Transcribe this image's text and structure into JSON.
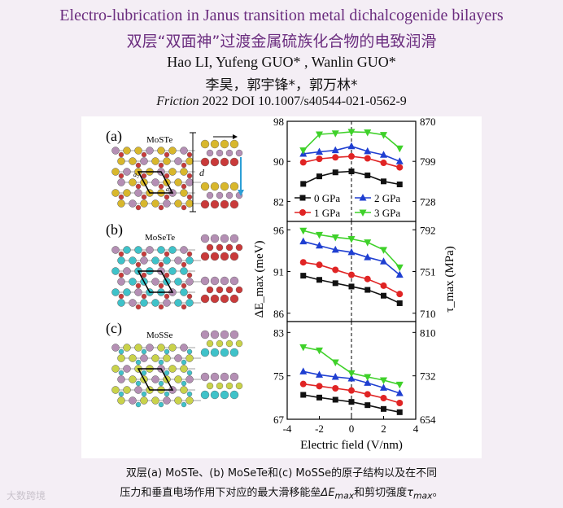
{
  "header": {
    "title_en": "Electro-lubrication in Janus transition metal dichalcogenide bilayers",
    "title_cn": "双层“双面神”过渡金属硫族化合物的电致润滑",
    "authors_en": "Hao LI, Yufeng GUO* , Wanlin GUO*",
    "authors_cn": "李昊，郭宇锋*，郭万林*",
    "journal": "Friction",
    "citation_rest": " 2022 DOI 10.1007/s40544-021-0562-9"
  },
  "figure": {
    "panel_a": {
      "tag": "(a)",
      "name": "MoSTe",
      "lattice_a1": "a₁",
      "lattice_a2": "a₂",
      "d_label": "d"
    },
    "panel_b": {
      "tag": "(b)",
      "name": "MoSeTe"
    },
    "panel_c": {
      "tag": "(c)",
      "name": "MoSSe"
    },
    "colors": {
      "mo": "#b48fb4",
      "s": "#d8b72c",
      "te": "#c93a3a",
      "se": "#3fc2c9",
      "s_light": "#c9d24a"
    }
  },
  "chart_data": {
    "type": "line",
    "xlabel": "Electric field (V/nm)",
    "ylabel_left": "ΔE_max (meV)",
    "ylabel_right": "τ_max (MPa)",
    "x_ticks": [
      "-4",
      "-2",
      "0",
      "2",
      "4"
    ],
    "xlim": [
      -4,
      4
    ],
    "legend": [
      "0 GPa",
      "1 GPa",
      "2 GPa",
      "3 GPa"
    ],
    "series_colors": [
      "#111111",
      "#e02424",
      "#1f3fd1",
      "#3fd12a"
    ],
    "x": [
      -3,
      -2,
      -1,
      0,
      1,
      2,
      3
    ],
    "subplots": [
      {
        "name": "MoSTe",
        "ylim": [
          78,
          98
        ],
        "left_ticks": [
          "98",
          "90",
          "82"
        ],
        "right_ticks": [
          "870",
          "799",
          "728"
        ],
        "series": [
          {
            "name": "0 GPa",
            "values": [
              85.5,
              87.0,
              87.8,
              88.0,
              87.2,
              86.0,
              85.4
            ]
          },
          {
            "name": "1 GPa",
            "values": [
              89.8,
              90.5,
              90.8,
              91.0,
              90.6,
              89.7,
              88.8
            ]
          },
          {
            "name": "2 GPa",
            "values": [
              91.5,
              91.9,
              92.2,
              93.0,
              92.0,
              91.3,
              90.0
            ]
          },
          {
            "name": "3 GPa",
            "values": [
              92.2,
              95.4,
              95.6,
              95.9,
              95.8,
              95.3,
              92.6
            ]
          }
        ]
      },
      {
        "name": "MoSeTe",
        "ylim": [
          85,
          97
        ],
        "left_ticks": [
          "96",
          "91",
          "86"
        ],
        "right_ticks": [
          "792",
          "751",
          "710"
        ],
        "series": [
          {
            "name": "0 GPa",
            "values": [
              90.5,
              90.0,
              89.6,
              89.2,
              88.8,
              88.1,
              87.2
            ]
          },
          {
            "name": "1 GPa",
            "values": [
              92.1,
              91.8,
              91.2,
              90.6,
              90.1,
              89.3,
              88.3
            ]
          },
          {
            "name": "2 GPa",
            "values": [
              94.6,
              94.1,
              93.6,
              93.3,
              92.7,
              92.2,
              90.6
            ]
          },
          {
            "name": "3 GPa",
            "values": [
              95.9,
              95.4,
              95.1,
              94.9,
              94.5,
              93.6,
              91.5
            ]
          }
        ]
      },
      {
        "name": "MoSSe",
        "ylim": [
          67,
          85
        ],
        "left_ticks": [
          "83",
          "75",
          "67"
        ],
        "right_ticks": [
          "810",
          "732",
          "654"
        ],
        "series": [
          {
            "name": "0 GPa",
            "values": [
              71.5,
              71.0,
              70.6,
              70.2,
              69.6,
              68.9,
              68.3
            ]
          },
          {
            "name": "1 GPa",
            "values": [
              73.5,
              73.1,
              72.7,
              72.3,
              71.6,
              70.9,
              70.0
            ]
          },
          {
            "name": "2 GPa",
            "values": [
              75.8,
              75.2,
              74.8,
              74.5,
              73.7,
              72.8,
              71.8
            ]
          },
          {
            "name": "3 GPa",
            "values": [
              80.3,
              79.7,
              77.5,
              75.5,
              74.8,
              74.2,
              73.4
            ]
          }
        ]
      }
    ]
  },
  "caption": {
    "line1": "双层(a) MoSTe、(b) MoSeTe和(c) MoSSe的原子结构以及在不同",
    "line2_a": "压力和垂直电场作用下对应的最大滑移能垒",
    "line2_sym1": "ΔE",
    "line2_sub1": "max",
    "line2_b": "和剪切强度",
    "line2_sym2": "τ",
    "line2_sub2": "max",
    "line2_end": "。"
  },
  "watermark": "大数跨境"
}
